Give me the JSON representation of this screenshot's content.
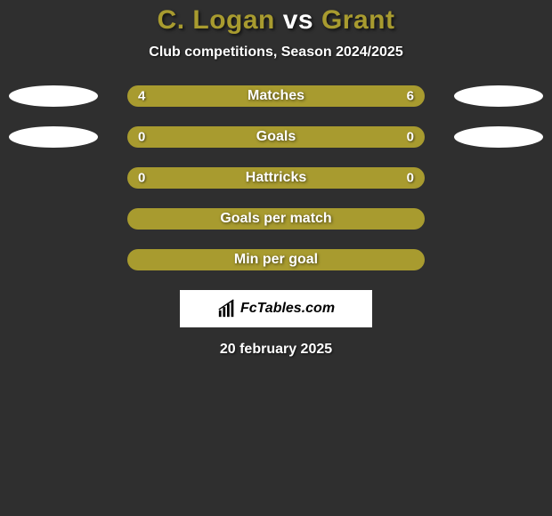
{
  "title": {
    "player1": "C. Logan",
    "vs": "vs",
    "player2": "Grant",
    "player1_color": "#a89b2f",
    "player2_color": "#a89b2f"
  },
  "subtitle": "Club competitions, Season 2024/2025",
  "rows": [
    {
      "label": "Matches",
      "left_value": "4",
      "right_value": "6",
      "left_fill": "#a89b2f",
      "right_fill": "#a89b2f",
      "left_pct": 40,
      "right_pct": 60,
      "show_left_oval": true,
      "show_right_oval": true
    },
    {
      "label": "Goals",
      "left_value": "0",
      "right_value": "0",
      "left_fill": "#a89b2f",
      "right_fill": "#a89b2f",
      "left_pct": 50,
      "right_pct": 50,
      "show_left_oval": true,
      "show_right_oval": true
    },
    {
      "label": "Hattricks",
      "left_value": "0",
      "right_value": "0",
      "left_fill": "#a89b2f",
      "right_fill": "#a89b2f",
      "left_pct": 50,
      "right_pct": 50,
      "show_left_oval": false,
      "show_right_oval": false
    },
    {
      "label": "Goals per match",
      "left_value": "",
      "right_value": "",
      "left_fill": "#a89b2f",
      "right_fill": "#a89b2f",
      "left_pct": 50,
      "right_pct": 50,
      "show_left_oval": false,
      "show_right_oval": false
    },
    {
      "label": "Min per goal",
      "left_value": "",
      "right_value": "",
      "left_fill": "#a89b2f",
      "right_fill": "#a89b2f",
      "left_pct": 50,
      "right_pct": 50,
      "show_left_oval": false,
      "show_right_oval": false
    }
  ],
  "logo_text": "FcTables.com",
  "date": "20 february 2025",
  "colors": {
    "background": "#2f2f2f",
    "bar_bg": "#a89b2f",
    "oval": "#ffffff",
    "text": "#ffffff"
  }
}
